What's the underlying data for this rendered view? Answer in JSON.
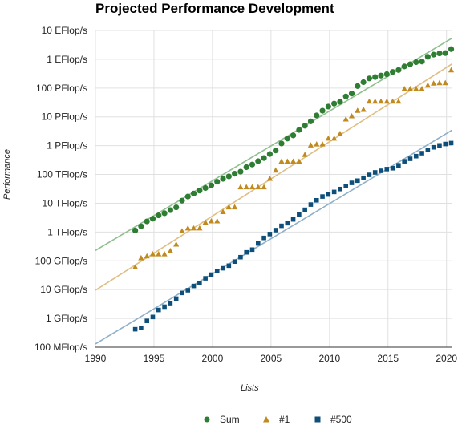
{
  "chart_data": {
    "type": "scatter",
    "title": "Projected Performance Development",
    "xlabel": "Lists",
    "ylabel": "Performance",
    "xlim": [
      1990,
      2020.5
    ],
    "ylim_log10": [
      -1,
      10
    ],
    "y_scale": "log",
    "grid": true,
    "legend_position": "bottom",
    "x_ticks": [
      "1990",
      "1995",
      "2000",
      "2005",
      "2010",
      "2015",
      "2020"
    ],
    "y_ticks": [
      "100 MFlop/s",
      "1 GFlop/s",
      "10 GFlop/s",
      "100 GFlop/s",
      "1 TFlop/s",
      "10 TFlop/s",
      "100 TFlop/s",
      "1 PFlop/s",
      "10 PFlop/s",
      "100 PFlop/s",
      "1 EFlop/s",
      "10 EFlop/s"
    ],
    "y_unit": "GFlop/s",
    "series": [
      {
        "name": "Sum",
        "color": "#2e7d32",
        "marker": "circle",
        "x": [
          1993.4,
          1993.9,
          1994.4,
          1994.9,
          1995.4,
          1995.9,
          1996.4,
          1996.9,
          1997.4,
          1997.9,
          1998.4,
          1998.9,
          1999.4,
          1999.9,
          2000.4,
          2000.9,
          2001.4,
          2001.9,
          2002.4,
          2002.9,
          2003.4,
          2003.9,
          2004.4,
          2004.9,
          2005.4,
          2005.9,
          2006.4,
          2006.9,
          2007.4,
          2007.9,
          2008.4,
          2008.9,
          2009.4,
          2009.9,
          2010.4,
          2010.9,
          2011.4,
          2011.9,
          2012.4,
          2012.9,
          2013.4,
          2013.9,
          2014.4,
          2014.9,
          2015.4,
          2015.9,
          2016.4,
          2016.9,
          2017.4,
          2017.9,
          2018.4,
          2018.9,
          2019.4,
          2019.9,
          2020.4
        ],
        "y": [
          1130,
          1580,
          2350,
          2900,
          3790,
          4500,
          5760,
          7200,
          12300,
          17100,
          21700,
          27500,
          33700,
          41600,
          55700,
          70600,
          85700,
          106000,
          125000,
          179000,
          221000,
          290000,
          370000,
          510000,
          681000,
          1190000,
          1760000,
          2270000,
          3520000,
          4910000,
          6970000,
          11200000,
          16300000,
          22700000,
          28800000,
          33400000,
          51100000,
          64300000,
          117000000,
          160000000,
          216000000,
          241000000,
          272000000,
          303000000,
          363000000,
          424000000,
          563000000,
          675000000,
          794000000,
          834000000,
          1220000000,
          1450000000,
          1600000000,
          1640000000,
          2250000000
        ]
      },
      {
        "name": "#1",
        "color": "#c08a1e",
        "marker": "triangle",
        "x": [
          1993.4,
          1993.9,
          1994.4,
          1994.9,
          1995.4,
          1995.9,
          1996.4,
          1996.9,
          1997.4,
          1997.9,
          1998.4,
          1998.9,
          1999.4,
          1999.9,
          2000.4,
          2000.9,
          2001.4,
          2001.9,
          2002.4,
          2002.9,
          2003.4,
          2003.9,
          2004.4,
          2004.9,
          2005.4,
          2005.9,
          2006.4,
          2006.9,
          2007.4,
          2007.9,
          2008.4,
          2008.9,
          2009.4,
          2009.9,
          2010.4,
          2010.9,
          2011.4,
          2011.9,
          2012.4,
          2012.9,
          2013.4,
          2013.9,
          2014.4,
          2014.9,
          2015.4,
          2015.9,
          2016.4,
          2016.9,
          2017.4,
          2017.9,
          2018.4,
          2018.9,
          2019.4,
          2019.9,
          2020.4
        ],
        "y": [
          59.7,
          124,
          143,
          170,
          170,
          170,
          220,
          368,
          1068,
          1338,
          1338,
          1338,
          2121,
          2380,
          2380,
          4938,
          7226,
          7226,
          35860,
          35860,
          35860,
          35860,
          35860,
          70720,
          136800,
          280600,
          280600,
          280600,
          280600,
          478200,
          1026000,
          1105000,
          1105000,
          1759000,
          1759000,
          2566000,
          8162000,
          10510000,
          16320000,
          17590000,
          33860000,
          33860000,
          33860000,
          33860000,
          33860000,
          33860000,
          93010000,
          93010000,
          93010000,
          93010000,
          122300000,
          143500000,
          148600000,
          148600000,
          415500000
        ]
      },
      {
        "name": "#500",
        "color": "#0d4f7a",
        "marker": "square",
        "x": [
          1993.4,
          1993.9,
          1994.4,
          1994.9,
          1995.4,
          1995.9,
          1996.4,
          1996.9,
          1997.4,
          1997.9,
          1998.4,
          1998.9,
          1999.4,
          1999.9,
          2000.4,
          2000.9,
          2001.4,
          2001.9,
          2002.4,
          2002.9,
          2003.4,
          2003.9,
          2004.4,
          2004.9,
          2005.4,
          2005.9,
          2006.4,
          2006.9,
          2007.4,
          2007.9,
          2008.4,
          2008.9,
          2009.4,
          2009.9,
          2010.4,
          2010.9,
          2011.4,
          2011.9,
          2012.4,
          2012.9,
          2013.4,
          2013.9,
          2014.4,
          2014.9,
          2015.4,
          2015.9,
          2016.4,
          2016.9,
          2017.4,
          2017.9,
          2018.4,
          2018.9,
          2019.4,
          2019.9,
          2020.4
        ],
        "y": [
          0.42,
          0.47,
          0.82,
          1.12,
          1.96,
          2.55,
          3.39,
          4.85,
          7.67,
          9.51,
          13.4,
          17.1,
          24.7,
          33.1,
          43.8,
          55.1,
          67.8,
          94.3,
          134,
          197,
          245,
          403,
          625,
          851,
          1166,
          1646,
          2026,
          2737,
          4005,
          5929,
          9000,
          12640,
          17100,
          20050,
          24670,
          31100,
          39090,
          50900,
          60800,
          76500,
          96600,
          117800,
          133700,
          153400,
          164600,
          206300,
          286100,
          349300,
          432200,
          548300,
          715600,
          874800,
          1022000,
          1142000,
          1230000
        ]
      }
    ],
    "trend_lines": [
      {
        "name": "Sum",
        "color": "#8fbf8f",
        "x": [
          1990,
          2020.5
        ],
        "y": [
          230,
          5500000000
        ]
      },
      {
        "name": "#1",
        "color": "#e0bd82",
        "x": [
          1990,
          2020.5
        ],
        "y": [
          9.5,
          700000000
        ]
      },
      {
        "name": "#500",
        "color": "#8fb0c8",
        "x": [
          1990,
          2020.5
        ],
        "y": [
          0.13,
          3500000
        ]
      }
    ]
  }
}
